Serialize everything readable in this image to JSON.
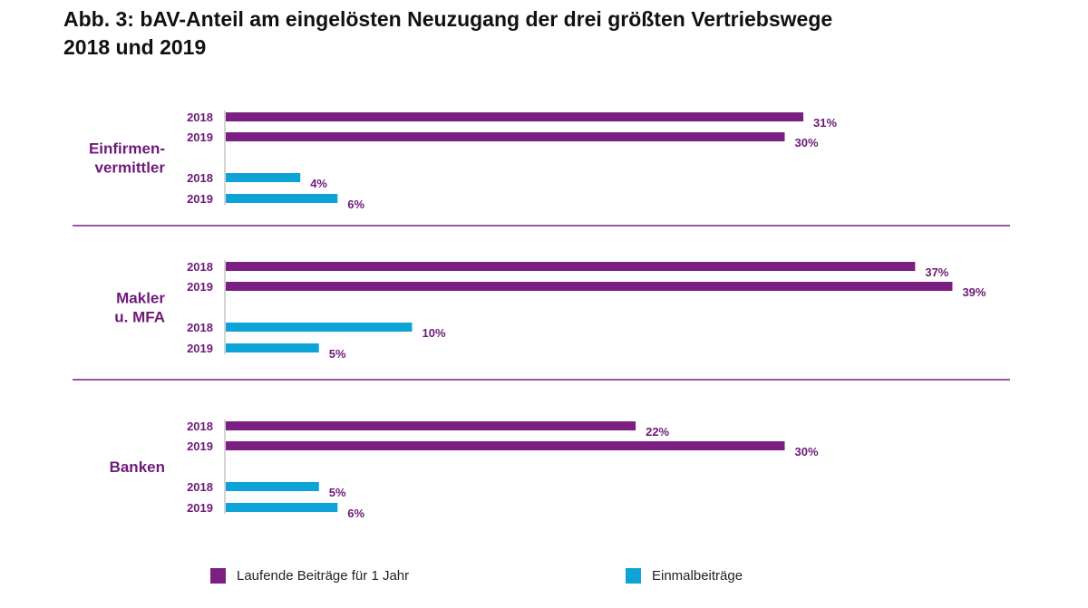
{
  "chart_data": {
    "type": "bar",
    "orientation": "horizontal",
    "title": "Abb. 3: bAV-Anteil am eingelösten Neuzugang der drei größten Vertriebswege 2018 und 2019",
    "title_lines": [
      "Abb. 3: bAV-Anteil am eingelösten Neuzugang der drei größten Vertriebswege",
      "2018 und 2019"
    ],
    "xlim": [
      0,
      40
    ],
    "grid": false,
    "legend_position": "bottom",
    "value_suffix": "%",
    "series": [
      {
        "key": "laufend",
        "name": "Laufende Beiträge für 1 Jahr",
        "color": "#7b1f82"
      },
      {
        "key": "einmal",
        "name": "Einmalbeiträge",
        "color": "#0ea3d6"
      }
    ],
    "groups": [
      {
        "label_lines": [
          "Einfirmen-",
          "vermittler"
        ],
        "rows": [
          {
            "series": "laufend",
            "year": "2018",
            "value": 31
          },
          {
            "series": "laufend",
            "year": "2019",
            "value": 30
          },
          {
            "series": "einmal",
            "year": "2018",
            "value": 4
          },
          {
            "series": "einmal",
            "year": "2019",
            "value": 6
          }
        ]
      },
      {
        "label_lines": [
          "Makler",
          "u. MFA"
        ],
        "rows": [
          {
            "series": "laufend",
            "year": "2018",
            "value": 37
          },
          {
            "series": "laufend",
            "year": "2019",
            "value": 39
          },
          {
            "series": "einmal",
            "year": "2018",
            "value": 10
          },
          {
            "series": "einmal",
            "year": "2019",
            "value": 5
          }
        ]
      },
      {
        "label_lines": [
          "Banken"
        ],
        "rows": [
          {
            "series": "laufend",
            "year": "2018",
            "value": 22
          },
          {
            "series": "laufend",
            "year": "2019",
            "value": 30
          },
          {
            "series": "einmal",
            "year": "2018",
            "value": 5
          },
          {
            "series": "einmal",
            "year": "2019",
            "value": 6
          }
        ]
      }
    ],
    "colors": {
      "group_label": "#6e1a78",
      "divider": "#7b1f82",
      "axis": "#aaaaaa"
    }
  }
}
